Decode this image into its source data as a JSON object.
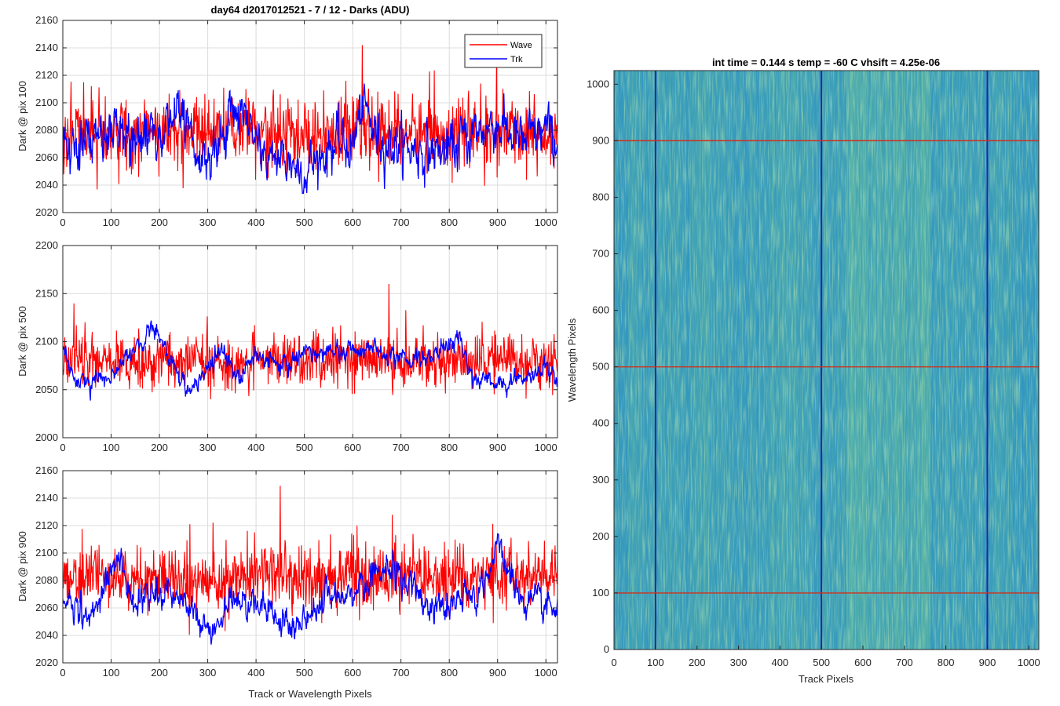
{
  "figure": {
    "title": "day64 d2017012521 - 7 / 12 - Darks (ADU)"
  },
  "colors": {
    "wave": "#ff0000",
    "trk": "#0000ff",
    "grid": "#dcdcdc",
    "axis": "#262626",
    "image_base": "#2a90c8",
    "image_hot": "#8ec882",
    "marker_red": "#d0301c",
    "marker_blue": "#1a2aa8"
  },
  "chart_data": [
    {
      "type": "line",
      "ylabel": "Dark @ pix 100",
      "xlim": [
        0,
        1024
      ],
      "ylim": [
        2020,
        2160
      ],
      "x_ticks": [
        0,
        100,
        200,
        300,
        400,
        500,
        600,
        700,
        800,
        900,
        1000
      ],
      "y_ticks": [
        2020,
        2040,
        2060,
        2080,
        2100,
        2120,
        2140,
        2160
      ],
      "grid": true,
      "legend": "top-right",
      "series": [
        {
          "name": "Wave",
          "mean": 2078,
          "noise_sd": 15,
          "range": [
            2032,
            2142
          ],
          "peak": {
            "x": 620,
            "y": 2142
          }
        },
        {
          "name": "Trk",
          "mean": 2070,
          "noise_sd": 14,
          "range": [
            2034,
            2114
          ],
          "trend_x": [
            0,
            50,
            100,
            150,
            200,
            240,
            260,
            290,
            330,
            360,
            390,
            420,
            470,
            500,
            560,
            600,
            620,
            650,
            700,
            750,
            800,
            850,
            900,
            950,
            1000,
            1024
          ],
          "trend_y": [
            2065,
            2072,
            2078,
            2072,
            2080,
            2100,
            2072,
            2052,
            2075,
            2100,
            2080,
            2062,
            2058,
            2050,
            2070,
            2068,
            2098,
            2075,
            2068,
            2065,
            2065,
            2078,
            2085,
            2070,
            2080,
            2070
          ]
        }
      ]
    },
    {
      "type": "line",
      "ylabel": "Dark @ pix 500",
      "xlim": [
        0,
        1024
      ],
      "ylim": [
        2000,
        2200
      ],
      "x_ticks": [
        0,
        100,
        200,
        300,
        400,
        500,
        600,
        700,
        800,
        900,
        1000
      ],
      "y_ticks": [
        2000,
        2050,
        2100,
        2150,
        2200
      ],
      "grid": true,
      "series": [
        {
          "name": "Wave",
          "mean": 2080,
          "noise_sd": 16,
          "range": [
            2040,
            2160
          ],
          "peak": {
            "x": 675,
            "y": 2160
          }
        },
        {
          "name": "Trk",
          "mean": 2075,
          "noise_sd": 8,
          "range": [
            2035,
            2125
          ],
          "trend_x": [
            0,
            30,
            60,
            100,
            150,
            190,
            220,
            250,
            280,
            330,
            360,
            400,
            450,
            500,
            550,
            600,
            650,
            700,
            750,
            820,
            850,
            900,
            1000,
            1024
          ],
          "trend_y": [
            2095,
            2060,
            2055,
            2065,
            2095,
            2115,
            2085,
            2050,
            2055,
            2095,
            2060,
            2090,
            2080,
            2085,
            2090,
            2090,
            2090,
            2082,
            2080,
            2105,
            2060,
            2055,
            2072,
            2060
          ]
        }
      ]
    },
    {
      "type": "line",
      "ylabel": "Dark @ pix 900",
      "xlabel": "Track or Wavelength Pixels",
      "xlim": [
        0,
        1024
      ],
      "ylim": [
        2020,
        2160
      ],
      "x_ticks": [
        0,
        100,
        200,
        300,
        400,
        500,
        600,
        700,
        800,
        900,
        1000
      ],
      "y_ticks": [
        2020,
        2040,
        2060,
        2080,
        2100,
        2120,
        2140,
        2160
      ],
      "grid": true,
      "series": [
        {
          "name": "Wave",
          "mean": 2082,
          "noise_sd": 14,
          "range": [
            2037,
            2149
          ],
          "peak": {
            "x": 450,
            "y": 2149
          }
        },
        {
          "name": "Trk",
          "mean": 2068,
          "noise_sd": 9,
          "range": [
            2026,
            2114
          ],
          "trend_x": [
            0,
            60,
            115,
            150,
            200,
            250,
            300,
            350,
            420,
            480,
            500,
            550,
            600,
            670,
            720,
            760,
            800,
            860,
            900,
            950,
            1000,
            1024
          ],
          "trend_y": [
            2065,
            2055,
            2095,
            2060,
            2075,
            2065,
            2040,
            2065,
            2060,
            2045,
            2050,
            2070,
            2070,
            2090,
            2075,
            2060,
            2060,
            2070,
            2105,
            2065,
            2060,
            2058
          ]
        }
      ]
    },
    {
      "type": "heatmap",
      "title": "int time = 0.144 s   temp = -60 C   vhsift = 4.25e-06",
      "xlabel": "Track Pixels",
      "ylabel": "Wavelength Pixels",
      "xlim": [
        0,
        1024
      ],
      "ylim": [
        0,
        1024
      ],
      "x_ticks": [
        0,
        100,
        200,
        300,
        400,
        500,
        600,
        700,
        800,
        900,
        1000
      ],
      "y_ticks": [
        0,
        100,
        200,
        300,
        400,
        500,
        600,
        700,
        800,
        900,
        1000
      ],
      "grid": false,
      "horizontal_markers": [
        100,
        500,
        900
      ],
      "vertical_markers": [
        100,
        500,
        900
      ],
      "bright_band_x": [
        560,
        760
      ]
    }
  ]
}
